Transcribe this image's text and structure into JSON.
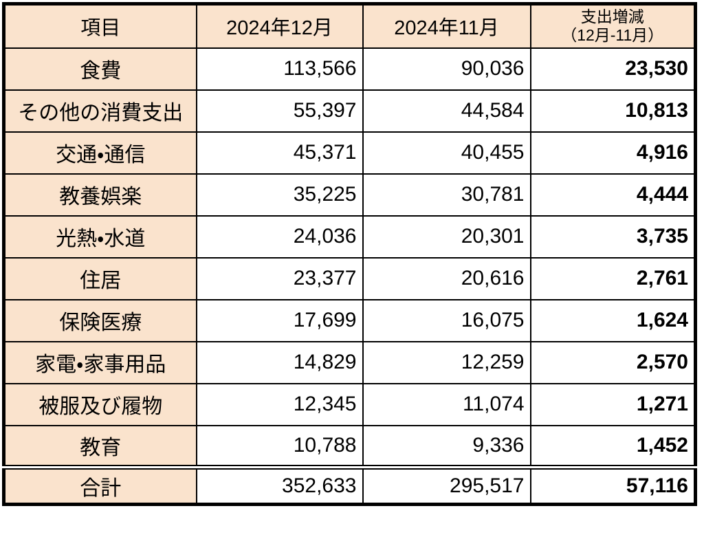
{
  "table": {
    "columns": [
      {
        "label": "項目"
      },
      {
        "label": "2024年12月"
      },
      {
        "label": "2024年11月"
      },
      {
        "label_line1": "支出増減",
        "label_line2": "（12月-11月）"
      }
    ],
    "rows": [
      {
        "item": "食費",
        "dec": "113,566",
        "nov": "90,036",
        "diff": "23,530"
      },
      {
        "item": "その他の消費支出",
        "dec": "55,397",
        "nov": "44,584",
        "diff": "10,813"
      },
      {
        "item": "交通・通信",
        "dec": "45,371",
        "nov": "40,455",
        "diff": "4,916"
      },
      {
        "item": "教養娯楽",
        "dec": "35,225",
        "nov": "30,781",
        "diff": "4,444"
      },
      {
        "item": "光熱・水道",
        "dec": "24,036",
        "nov": "20,301",
        "diff": "3,735"
      },
      {
        "item": "住居",
        "dec": "23,377",
        "nov": "20,616",
        "diff": "2,761"
      },
      {
        "item": "保険医療",
        "dec": "17,699",
        "nov": "16,075",
        "diff": "1,624"
      },
      {
        "item": "家電・家事用品",
        "dec": "14,829",
        "nov": "12,259",
        "diff": "2,570"
      },
      {
        "item": "被服及び履物",
        "dec": "12,345",
        "nov": "11,074",
        "diff": "1,271"
      },
      {
        "item": "教育",
        "dec": "10,788",
        "nov": "9,336",
        "diff": "1,452"
      }
    ],
    "total": {
      "item": "合計",
      "dec": "352,633",
      "nov": "295,517",
      "diff": "57,116"
    },
    "colors": {
      "row_header_fill": "#FAE3CD",
      "value_cell_fill": "#FFFFFF",
      "border": "#000000",
      "text": "#000000"
    }
  },
  "chart_data": {
    "type": "table",
    "title": "支出増減（12月-11月）",
    "columns": [
      "項目",
      "2024年12月",
      "2024年11月",
      "支出増減（12月-11月）"
    ],
    "rows": [
      [
        "食費",
        113566,
        90036,
        23530
      ],
      [
        "その他の消費支出",
        55397,
        44584,
        10813
      ],
      [
        "交通・通信",
        45371,
        40455,
        4916
      ],
      [
        "教養娯楽",
        35225,
        30781,
        4444
      ],
      [
        "光熱・水道",
        24036,
        20301,
        3735
      ],
      [
        "住居",
        23377,
        20616,
        2761
      ],
      [
        "保険医療",
        17699,
        16075,
        1624
      ],
      [
        "家電・家事用品",
        14829,
        12259,
        2570
      ],
      [
        "被服及び履物",
        12345,
        11074,
        1271
      ],
      [
        "教育",
        10788,
        9336,
        1452
      ]
    ],
    "total_row": [
      "合計",
      352633,
      295517,
      57116
    ]
  }
}
